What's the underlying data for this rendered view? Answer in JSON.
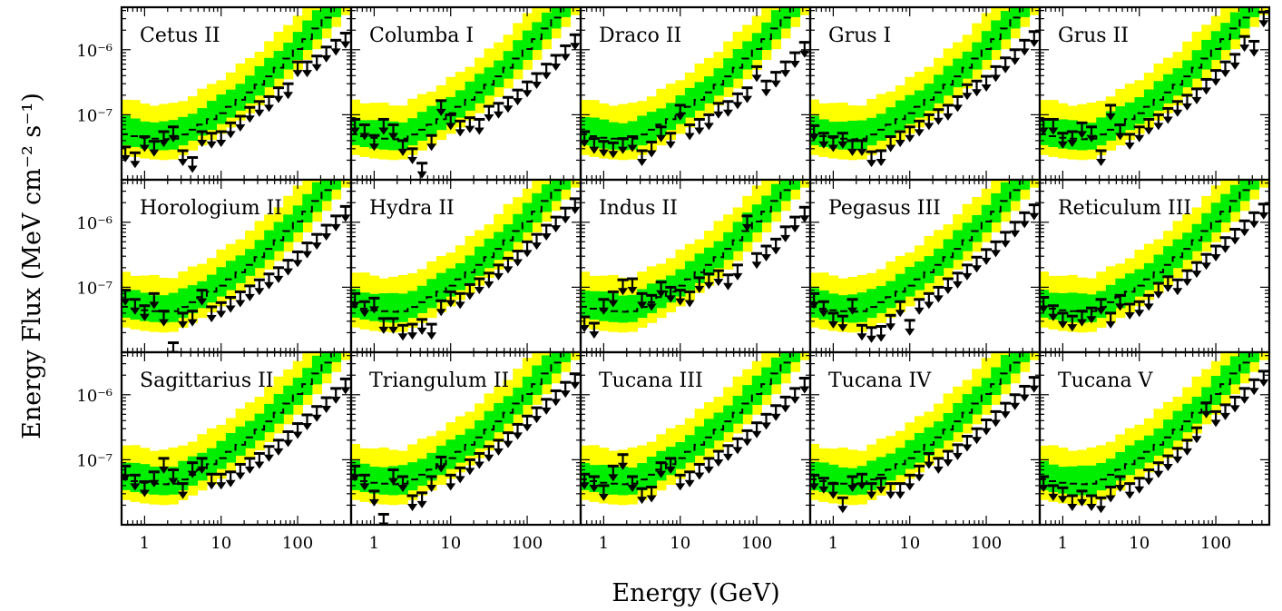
{
  "figure": {
    "ylabel": "Energy Flux (MeV cm⁻² s⁻¹)",
    "xlabel": "Energy (GeV)"
  },
  "axes": {
    "x": {
      "scale": "log",
      "range_gev": [
        0.5,
        500
      ],
      "tick_values": [
        1,
        10,
        100
      ],
      "tick_labels": [
        "1",
        "10",
        "100"
      ]
    },
    "y": {
      "scale": "log",
      "range_mev_cm2_s": [
        1e-08,
        4.5e-06
      ],
      "tick_values": [
        1e-07,
        1e-06
      ],
      "tick_labels": [
        "10⁻⁷",
        "10⁻⁶"
      ]
    }
  },
  "colors": {
    "band_95": "#ffff00",
    "band_68": "#00ee00",
    "median": "#000000",
    "upper_limit": "#000000"
  },
  "chart_data": {
    "type": "scatter",
    "layout": {
      "rows": 3,
      "columns": 5
    },
    "energy_bins_gev": [
      0.56,
      0.75,
      1.0,
      1.33,
      1.78,
      2.37,
      3.16,
      4.22,
      5.62,
      7.5,
      10.0,
      13.3,
      17.8,
      23.7,
      31.6,
      42.2,
      56.2,
      75.0,
      100,
      133,
      178,
      237,
      316,
      422
    ],
    "band_description": "Expected sensitivity: median (dashed), 68% containment (green), 95% containment (yellow)",
    "panels": [
      {
        "name": "Cetus II",
        "ul_flux": [
          3.2e-08,
          2.6e-08,
          4.6e-08,
          3.9e-08,
          5.5e-08,
          6.5e-08,
          2.8e-08,
          2.2e-08,
          5.5e-08,
          5.2e-08,
          5.5e-08,
          7.5e-08,
          9.5e-08,
          1.3e-07,
          1.6e-07,
          1.9e-07,
          2.6e-07,
          3e-07,
          6.5e-07,
          6.5e-07,
          8e-07,
          1.1e-06,
          1.4e-06,
          1.8e-06
        ]
      },
      {
        "name": "Columba I",
        "ul_flux": [
          8.5e-08,
          7e-08,
          4.8e-08,
          8.5e-08,
          7e-08,
          4e-08,
          3e-08,
          1.8e-08,
          4.8e-08,
          1.65e-07,
          1e-07,
          8e-08,
          9e-08,
          8.5e-08,
          1.35e-07,
          1.5e-07,
          1.85e-07,
          2.4e-07,
          3.2e-07,
          4.3e-07,
          6e-07,
          8.2e-07,
          1.15e-06,
          1.7e-06
        ]
      },
      {
        "name": "Draco II",
        "ul_flux": [
          5.5e-08,
          4.3e-08,
          3.9e-08,
          3.7e-08,
          4.3e-08,
          4.6e-08,
          2.8e-08,
          3.8e-08,
          6.5e-08,
          5.2e-08,
          1.4e-07,
          7e-08,
          8.5e-08,
          1e-07,
          1.5e-07,
          1.6e-07,
          2.1e-07,
          2.6e-07,
          5.5e-07,
          3.3e-07,
          4.5e-07,
          6.5e-07,
          9e-07,
          1.3e-06
        ]
      },
      {
        "name": "Grus I",
        "ul_flux": [
          6.8e-08,
          5.2e-08,
          4.6e-08,
          5.2e-08,
          4e-08,
          4e-08,
          2.7e-08,
          2.8e-08,
          4.6e-08,
          5.5e-08,
          6.5e-08,
          8e-08,
          1e-07,
          1.2e-07,
          1.4e-07,
          1.9e-07,
          2.9e-07,
          3.3e-07,
          3.9e-07,
          5.5e-07,
          7.5e-07,
          1e-06,
          1.4e-06,
          1.9e-06
        ]
      },
      {
        "name": "Grus II",
        "ul_flux": [
          8.5e-08,
          8.5e-08,
          5.2e-08,
          5.5e-08,
          7.5e-08,
          6.5e-08,
          2.8e-08,
          1.4e-07,
          7e-08,
          5e-08,
          6.5e-08,
          8.5e-08,
          1e-07,
          1.25e-07,
          1.6e-07,
          2e-07,
          2.5e-07,
          3.5e-07,
          4.8e-07,
          6.5e-07,
          8.5e-07,
          1.6e-06,
          1.35e-06,
          3.8e-06
        ]
      },
      {
        "name": "Horologium II",
        "ul_flux": [
          9e-08,
          6.5e-08,
          5.2e-08,
          8e-08,
          4.3e-08,
          1.4e-08,
          4e-08,
          4.3e-08,
          9e-08,
          5e-08,
          5.8e-08,
          7e-08,
          8.5e-08,
          1.05e-07,
          1.3e-07,
          1.6e-07,
          2e-07,
          2.6e-07,
          3.5e-07,
          4.8e-07,
          6.5e-07,
          9e-07,
          1.25e-06,
          1.75e-06
        ]
      },
      {
        "name": "Hydra II",
        "ul_flux": [
          8e-08,
          6e-08,
          6.8e-08,
          3.3e-08,
          3.3e-08,
          2.6e-08,
          2.7e-08,
          3.2e-08,
          2.7e-08,
          6.2e-08,
          8.5e-08,
          8e-08,
          1.1e-07,
          1.35e-07,
          1.65e-07,
          2.2e-07,
          2.8e-07,
          3.6e-07,
          5e-07,
          6.5e-07,
          9e-07,
          1.2e-06,
          1.65e-06,
          2.3e-06
        ]
      },
      {
        "name": "Indus II",
        "ul_flux": [
          3.5e-08,
          2.8e-08,
          6.5e-08,
          8.5e-08,
          1.3e-07,
          1.35e-07,
          8e-08,
          7.5e-08,
          1.2e-07,
          1e-07,
          9e-08,
          8.5e-08,
          1.4e-07,
          1.6e-07,
          1.8e-07,
          1.55e-07,
          2.2e-07,
          1.25e-06,
          3.3e-07,
          4.3e-07,
          5.5e-07,
          8.5e-07,
          1.2e-06,
          1.7e-06
        ]
      },
      {
        "name": "Pegasus III",
        "ul_flux": [
          8e-08,
          6e-08,
          4e-08,
          3.6e-08,
          6.5e-08,
          2.6e-08,
          2.4e-08,
          2.5e-08,
          3.7e-08,
          6e-08,
          3.1e-08,
          6.5e-08,
          8e-08,
          1e-07,
          1.35e-07,
          1.65e-07,
          2.2e-07,
          2.9e-07,
          3.8e-07,
          5e-07,
          7e-07,
          1e-06,
          1.4e-06,
          1.85e-06
        ]
      },
      {
        "name": "Reticulum III",
        "ul_flux": [
          7e-08,
          5.2e-08,
          4e-08,
          3.6e-08,
          4.3e-08,
          4.8e-08,
          6.5e-08,
          4e-08,
          7.5e-08,
          5.5e-08,
          6e-08,
          7.5e-08,
          1.15e-07,
          1.45e-07,
          1.3e-07,
          1.8e-07,
          2.4e-07,
          3.2e-07,
          4.3e-07,
          5.8e-07,
          7.8e-07,
          1.05e-06,
          1.4e-06,
          1.9e-06
        ]
      },
      {
        "name": "Sagittarius II",
        "ul_flux": [
          8e-08,
          5.8e-08,
          4.6e-08,
          6.5e-08,
          1.05e-07,
          7e-08,
          4.3e-08,
          9e-08,
          1.05e-07,
          6e-08,
          6e-08,
          6.5e-08,
          8.5e-08,
          1.05e-07,
          1.25e-07,
          1.6e-07,
          2e-07,
          2.7e-07,
          3.6e-07,
          4.9e-07,
          6.6e-07,
          9e-07,
          1.25e-06,
          1.75e-06
        ]
      },
      {
        "name": "Triangulum II",
        "ul_flux": [
          8e-08,
          5.8e-08,
          3.3e-08,
          1.45e-08,
          7e-08,
          5.5e-08,
          2.8e-08,
          3.1e-08,
          5.5e-08,
          1.1e-07,
          5.8e-08,
          7.5e-08,
          1e-07,
          1.25e-07,
          1.6e-07,
          2e-07,
          2.6e-07,
          3.5e-07,
          4.7e-07,
          6.3e-07,
          8.5e-07,
          1.15e-06,
          1.55e-06,
          2.1e-06
        ]
      },
      {
        "name": "Tucana III",
        "ul_flux": [
          6e-08,
          5.5e-08,
          4e-08,
          8e-08,
          1.2e-07,
          5.5e-08,
          3.6e-08,
          3.8e-08,
          9e-08,
          1.05e-07,
          5.8e-08,
          6.5e-08,
          8.5e-08,
          1.05e-07,
          1.35e-07,
          1.65e-07,
          2.1e-07,
          2.8e-07,
          3.7e-07,
          5e-07,
          6.8e-07,
          9.2e-07,
          1.25e-06,
          1.8e-06
        ]
      },
      {
        "name": "Tucana IV",
        "ul_flux": [
          5.8e-08,
          5.2e-08,
          4.3e-08,
          2.6e-08,
          5.5e-08,
          6e-08,
          4.3e-08,
          5.2e-08,
          4.3e-08,
          4.3e-08,
          5.8e-08,
          8e-08,
          1.25e-07,
          1.05e-07,
          1.35e-07,
          1.7e-07,
          2.3e-07,
          3e-07,
          4.1e-07,
          5.5e-07,
          7.4e-07,
          1e-06,
          1.35e-06,
          1.85e-06
        ]
      },
      {
        "name": "Tucana V",
        "ul_flux": [
          5.5e-08,
          4e-08,
          3.7e-08,
          2.8e-08,
          3.3e-08,
          2.8e-08,
          2.6e-08,
          3.8e-08,
          5.5e-08,
          4.3e-08,
          5.2e-08,
          7e-08,
          9e-08,
          1.15e-07,
          1.5e-07,
          2e-07,
          3.1e-07,
          7.5e-07,
          5.5e-07,
          7e-07,
          9.2e-07,
          1.25e-06,
          1.7e-06,
          2.3e-06
        ]
      }
    ]
  }
}
